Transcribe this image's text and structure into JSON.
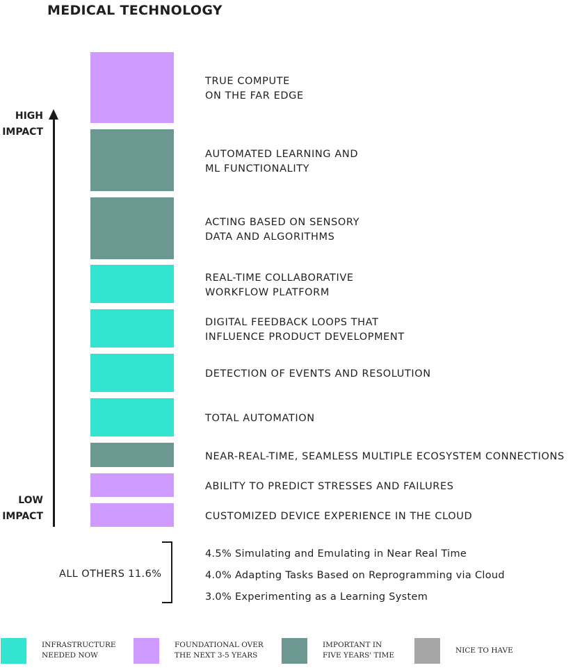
{
  "title": "MEDICAL TECHNOLOGY",
  "axis": {
    "high_label": "HIGH\nIMPACT",
    "low_label": "LOW\nIMPACT"
  },
  "colors": {
    "infrastructure": "#33e5d0",
    "foundational": "#cf9bff",
    "important": "#6c9892",
    "nice": "#a6a6a6"
  },
  "items": [
    {
      "label": "TRUE COMPUTE\nON THE FAR EDGE",
      "category": "foundational"
    },
    {
      "label": "AUTOMATED LEARNING AND\nML FUNCTIONALITY",
      "category": "important"
    },
    {
      "label": "ACTING BASED ON SENSORY\nDATA AND ALGORITHMS",
      "category": "important"
    },
    {
      "label": "REAL-TIME COLLABORATIVE\nWORKFLOW PLATFORM",
      "category": "infrastructure"
    },
    {
      "label": "DIGITAL FEEDBACK LOOPS THAT\nINFLUENCE PRODUCT DEVELOPMENT",
      "category": "infrastructure"
    },
    {
      "label": "DETECTION OF EVENTS AND RESOLUTION",
      "category": "infrastructure"
    },
    {
      "label": "TOTAL AUTOMATION",
      "category": "infrastructure"
    },
    {
      "label": "NEAR-REAL-TIME, SEAMLESS MULTIPLE ECOSYSTEM CONNECTIONS",
      "category": "important"
    },
    {
      "label": "ABILITY TO PREDICT STRESSES AND FAILURES",
      "category": "foundational"
    },
    {
      "label": "CUSTOMIZED DEVICE EXPERIENCE IN THE CLOUD",
      "category": "foundational"
    }
  ],
  "others": {
    "label": "ALL OTHERS 11.6%",
    "items": [
      "4.5% Simulating and Emulating in Near Real Time",
      "4.0% Adapting Tasks Based on Reprogramming via Cloud",
      "3.0% Experimenting as a Learning System"
    ]
  },
  "legend": [
    {
      "label": "INFRASTRUCTURE\nNEEDED NOW",
      "category": "infrastructure"
    },
    {
      "label": "FOUNDATIONAL OVER\nTHE NEXT 3-5 YEARS",
      "category": "foundational"
    },
    {
      "label": "IMPORTANT IN\nFIVE YEARS' TIME",
      "category": "important"
    },
    {
      "label": "NICE TO HAVE",
      "category": "nice"
    }
  ]
}
